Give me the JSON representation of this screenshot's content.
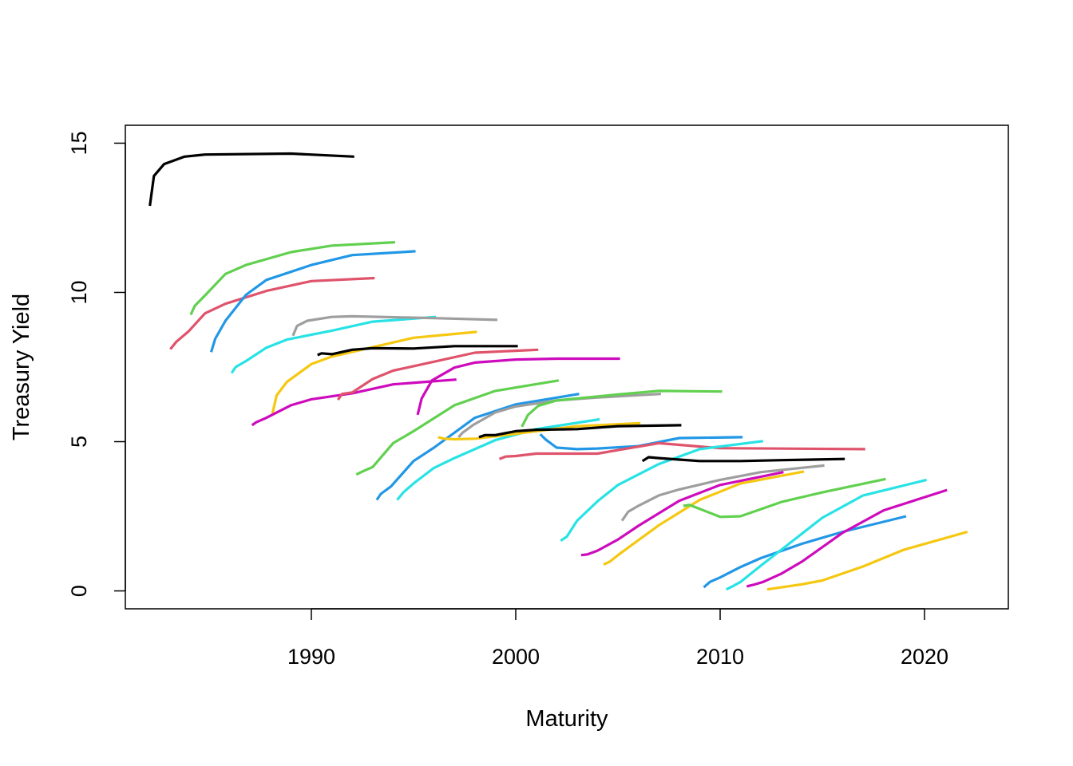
{
  "chart_data": {
    "type": "line",
    "title": "",
    "xlabel": "Maturity",
    "ylabel": "Treasury Yield",
    "xlim": [
      1980.9,
      2024.1
    ],
    "ylim": [
      -0.6,
      15.6
    ],
    "xticks": [
      1990,
      2000,
      2010,
      2020
    ],
    "yticks": [
      0,
      5,
      10,
      15
    ],
    "grid": false,
    "legend": "none",
    "series": [
      {
        "color": "#000000",
        "points": [
          [
            1982.1,
            12.9
          ],
          [
            1982.3,
            13.9
          ],
          [
            1982.8,
            14.3
          ],
          [
            1983.8,
            14.55
          ],
          [
            1984.8,
            14.62
          ],
          [
            1989.0,
            14.65
          ],
          [
            1992.1,
            14.55
          ]
        ]
      },
      {
        "color": "#DF536B",
        "points": [
          [
            1983.1,
            8.1
          ],
          [
            1983.4,
            8.35
          ],
          [
            1984.0,
            8.7
          ],
          [
            1984.8,
            9.3
          ],
          [
            1985.8,
            9.62
          ],
          [
            1987.8,
            10.05
          ],
          [
            1990.0,
            10.38
          ],
          [
            1993.1,
            10.48
          ]
        ]
      },
      {
        "color": "#61D04F",
        "points": [
          [
            1984.1,
            9.25
          ],
          [
            1984.3,
            9.55
          ],
          [
            1984.8,
            9.9
          ],
          [
            1985.8,
            10.62
          ],
          [
            1986.8,
            10.92
          ],
          [
            1989.0,
            11.35
          ],
          [
            1991.0,
            11.57
          ],
          [
            1994.1,
            11.68
          ]
        ]
      },
      {
        "color": "#2297E6",
        "points": [
          [
            1985.1,
            8.0
          ],
          [
            1985.3,
            8.45
          ],
          [
            1985.8,
            9.05
          ],
          [
            1986.8,
            9.92
          ],
          [
            1987.8,
            10.42
          ],
          [
            1990.0,
            10.92
          ],
          [
            1992.0,
            11.25
          ],
          [
            1995.1,
            11.38
          ]
        ]
      },
      {
        "color": "#28E2E5",
        "points": [
          [
            1986.1,
            7.3
          ],
          [
            1986.3,
            7.5
          ],
          [
            1986.8,
            7.7
          ],
          [
            1987.8,
            8.15
          ],
          [
            1988.8,
            8.42
          ],
          [
            1991.0,
            8.72
          ],
          [
            1993.0,
            9.02
          ],
          [
            1996.1,
            9.18
          ]
        ]
      },
      {
        "color": "#9E9E9E",
        "points": [
          [
            1989.1,
            8.55
          ],
          [
            1989.3,
            8.88
          ],
          [
            1989.8,
            9.05
          ],
          [
            1991.0,
            9.18
          ],
          [
            1992.0,
            9.2
          ],
          [
            1996.0,
            9.14
          ],
          [
            1999.1,
            9.08
          ]
        ]
      },
      {
        "color": "#F5C710",
        "points": [
          [
            1988.1,
            5.95
          ],
          [
            1988.3,
            6.55
          ],
          [
            1988.8,
            7.0
          ],
          [
            1990.0,
            7.6
          ],
          [
            1991.0,
            7.85
          ],
          [
            1995.0,
            8.48
          ],
          [
            1998.1,
            8.68
          ]
        ]
      },
      {
        "color": "#CD0BBC",
        "points": [
          [
            1987.1,
            5.55
          ],
          [
            1987.3,
            5.65
          ],
          [
            1987.8,
            5.8
          ],
          [
            1989.0,
            6.22
          ],
          [
            1990.0,
            6.42
          ],
          [
            1992.0,
            6.62
          ],
          [
            1994.0,
            6.92
          ],
          [
            1997.1,
            7.08
          ]
        ]
      },
      {
        "color": "#000000",
        "points": [
          [
            1990.3,
            7.9
          ],
          [
            1990.5,
            7.96
          ],
          [
            1991.0,
            7.93
          ],
          [
            1992.0,
            8.08
          ],
          [
            1993.0,
            8.13
          ],
          [
            1995.0,
            8.12
          ],
          [
            1997.0,
            8.2
          ],
          [
            2000.1,
            8.2
          ]
        ]
      },
      {
        "color": "#DF536B",
        "points": [
          [
            1991.3,
            6.4
          ],
          [
            1991.5,
            6.6
          ],
          [
            1992.0,
            6.65
          ],
          [
            1993.0,
            7.1
          ],
          [
            1994.0,
            7.38
          ],
          [
            1996.0,
            7.68
          ],
          [
            1998.0,
            7.98
          ],
          [
            2001.1,
            8.08
          ]
        ]
      },
      {
        "color": "#61D04F",
        "points": [
          [
            1992.2,
            3.9
          ],
          [
            1992.5,
            4.0
          ],
          [
            1993.0,
            4.15
          ],
          [
            1994.0,
            4.95
          ],
          [
            1995.0,
            5.35
          ],
          [
            1997.0,
            6.22
          ],
          [
            1999.0,
            6.7
          ],
          [
            2002.1,
            7.05
          ]
        ]
      },
      {
        "color": "#2297E6",
        "points": [
          [
            1993.2,
            3.05
          ],
          [
            1993.4,
            3.25
          ],
          [
            1993.9,
            3.5
          ],
          [
            1995.0,
            4.35
          ],
          [
            1996.0,
            4.8
          ],
          [
            1998.0,
            5.8
          ],
          [
            2000.0,
            6.25
          ],
          [
            2003.1,
            6.6
          ]
        ]
      },
      {
        "color": "#28E2E5",
        "points": [
          [
            1994.2,
            3.05
          ],
          [
            1994.5,
            3.3
          ],
          [
            1995.0,
            3.6
          ],
          [
            1996.0,
            4.12
          ],
          [
            1997.0,
            4.45
          ],
          [
            1999.0,
            5.05
          ],
          [
            2001.0,
            5.42
          ],
          [
            2004.1,
            5.75
          ]
        ]
      },
      {
        "color": "#CD0BBC",
        "points": [
          [
            1995.2,
            5.9
          ],
          [
            1995.4,
            6.45
          ],
          [
            1995.9,
            7.05
          ],
          [
            1997.0,
            7.48
          ],
          [
            1998.0,
            7.65
          ],
          [
            2000.0,
            7.75
          ],
          [
            2002.0,
            7.78
          ],
          [
            2005.1,
            7.78
          ]
        ]
      },
      {
        "color": "#9E9E9E",
        "points": [
          [
            1997.2,
            5.15
          ],
          [
            1997.4,
            5.3
          ],
          [
            1997.9,
            5.55
          ],
          [
            1999.0,
            5.98
          ],
          [
            2000.0,
            6.18
          ],
          [
            2002.0,
            6.38
          ],
          [
            2004.0,
            6.48
          ],
          [
            2007.1,
            6.6
          ]
        ]
      },
      {
        "color": "#61D04F",
        "points": [
          [
            2000.3,
            5.5
          ],
          [
            2000.6,
            5.9
          ],
          [
            2001.1,
            6.2
          ],
          [
            2002.0,
            6.38
          ],
          [
            2003.0,
            6.45
          ],
          [
            2005.0,
            6.58
          ],
          [
            2007.0,
            6.7
          ],
          [
            2010.1,
            6.68
          ]
        ]
      },
      {
        "color": "#F5C710",
        "points": [
          [
            1996.2,
            5.15
          ],
          [
            1996.5,
            5.1
          ],
          [
            1997.0,
            5.08
          ],
          [
            1998.0,
            5.1
          ],
          [
            1999.0,
            5.18
          ],
          [
            2001.0,
            5.35
          ],
          [
            2003.0,
            5.52
          ],
          [
            2006.1,
            5.62
          ]
        ]
      },
      {
        "color": "#000000",
        "points": [
          [
            1998.2,
            5.15
          ],
          [
            1998.5,
            5.22
          ],
          [
            1999.0,
            5.22
          ],
          [
            2000.0,
            5.35
          ],
          [
            2001.0,
            5.4
          ],
          [
            2003.0,
            5.42
          ],
          [
            2005.0,
            5.52
          ],
          [
            2008.1,
            5.55
          ]
        ]
      },
      {
        "color": "#2297E6",
        "points": [
          [
            2001.2,
            5.25
          ],
          [
            2001.5,
            5.05
          ],
          [
            2002.0,
            4.8
          ],
          [
            2003.0,
            4.75
          ],
          [
            2004.0,
            4.77
          ],
          [
            2006.0,
            4.85
          ],
          [
            2008.0,
            5.12
          ],
          [
            2011.1,
            5.15
          ]
        ]
      },
      {
        "color": "#DF536B",
        "points": [
          [
            1999.2,
            4.42
          ],
          [
            1999.5,
            4.5
          ],
          [
            2000.0,
            4.52
          ],
          [
            2001.0,
            4.6
          ],
          [
            2002.0,
            4.6
          ],
          [
            2004.0,
            4.6
          ],
          [
            2007.0,
            4.95
          ],
          [
            2010.0,
            4.78
          ],
          [
            2017.1,
            4.75
          ]
        ]
      },
      {
        "color": "#28E2E5",
        "points": [
          [
            2002.2,
            1.68
          ],
          [
            2002.5,
            1.82
          ],
          [
            2003.0,
            2.35
          ],
          [
            2004.0,
            3.0
          ],
          [
            2005.0,
            3.55
          ],
          [
            2007.0,
            4.25
          ],
          [
            2009.0,
            4.75
          ],
          [
            2012.1,
            5.02
          ]
        ]
      },
      {
        "color": "#000000",
        "points": [
          [
            2006.2,
            4.35
          ],
          [
            2006.5,
            4.48
          ],
          [
            2007.0,
            4.45
          ],
          [
            2008.0,
            4.4
          ],
          [
            2009.0,
            4.35
          ],
          [
            2011.0,
            4.35
          ],
          [
            2013.0,
            4.38
          ],
          [
            2016.1,
            4.42
          ]
        ]
      },
      {
        "color": "#9E9E9E",
        "points": [
          [
            2005.2,
            2.35
          ],
          [
            2005.5,
            2.65
          ],
          [
            2006.0,
            2.85
          ],
          [
            2007.0,
            3.2
          ],
          [
            2008.0,
            3.4
          ],
          [
            2010.0,
            3.72
          ],
          [
            2012.0,
            3.98
          ],
          [
            2015.1,
            4.2
          ]
        ]
      },
      {
        "color": "#CD0BBC",
        "points": [
          [
            2003.2,
            1.2
          ],
          [
            2003.5,
            1.22
          ],
          [
            2004.0,
            1.35
          ],
          [
            2005.0,
            1.72
          ],
          [
            2006.0,
            2.18
          ],
          [
            2008.0,
            3.02
          ],
          [
            2010.0,
            3.55
          ],
          [
            2013.1,
            3.98
          ]
        ]
      },
      {
        "color": "#F5C710",
        "points": [
          [
            2004.3,
            0.88
          ],
          [
            2004.6,
            0.98
          ],
          [
            2005.1,
            1.25
          ],
          [
            2006.0,
            1.7
          ],
          [
            2007.0,
            2.2
          ],
          [
            2009.0,
            3.05
          ],
          [
            2011.0,
            3.6
          ],
          [
            2014.1,
            4.0
          ]
        ]
      },
      {
        "color": "#61D04F",
        "points": [
          [
            2008.2,
            2.85
          ],
          [
            2008.5,
            2.88
          ],
          [
            2009.0,
            2.75
          ],
          [
            2010.0,
            2.48
          ],
          [
            2011.0,
            2.5
          ],
          [
            2013.0,
            2.98
          ],
          [
            2015.0,
            3.3
          ],
          [
            2018.1,
            3.75
          ]
        ]
      },
      {
        "color": "#2297E6",
        "points": [
          [
            2009.2,
            0.12
          ],
          [
            2009.5,
            0.3
          ],
          [
            2010.0,
            0.45
          ],
          [
            2011.0,
            0.8
          ],
          [
            2012.0,
            1.1
          ],
          [
            2014.0,
            1.58
          ],
          [
            2016.0,
            1.98
          ],
          [
            2019.1,
            2.5
          ]
        ]
      },
      {
        "color": "#28E2E5",
        "points": [
          [
            2010.3,
            0.05
          ],
          [
            2010.6,
            0.15
          ],
          [
            2011.0,
            0.3
          ],
          [
            2012.0,
            0.85
          ],
          [
            2013.0,
            1.38
          ],
          [
            2015.0,
            2.45
          ],
          [
            2017.0,
            3.2
          ],
          [
            2020.1,
            3.72
          ]
        ]
      },
      {
        "color": "#CD0BBC",
        "points": [
          [
            2011.3,
            0.15
          ],
          [
            2011.6,
            0.2
          ],
          [
            2012.1,
            0.3
          ],
          [
            2013.0,
            0.58
          ],
          [
            2014.0,
            0.98
          ],
          [
            2016.0,
            1.95
          ],
          [
            2018.0,
            2.7
          ],
          [
            2021.1,
            3.38
          ]
        ]
      },
      {
        "color": "#F5C710",
        "points": [
          [
            2012.3,
            0.05
          ],
          [
            2012.6,
            0.08
          ],
          [
            2013.0,
            0.12
          ],
          [
            2014.0,
            0.22
          ],
          [
            2015.0,
            0.35
          ],
          [
            2017.0,
            0.82
          ],
          [
            2019.0,
            1.38
          ],
          [
            2022.1,
            1.98
          ]
        ]
      }
    ]
  }
}
